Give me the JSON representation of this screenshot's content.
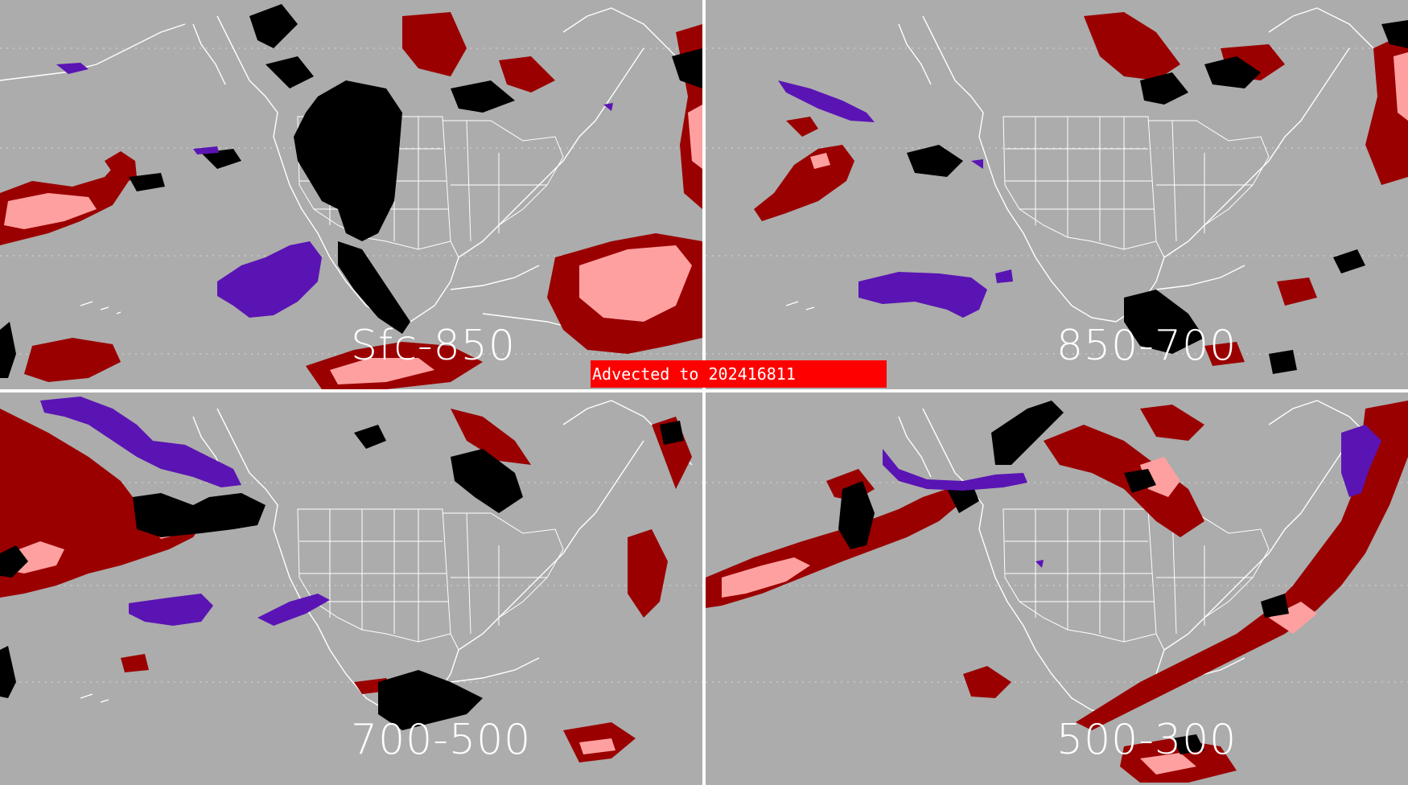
{
  "banner": {
    "text": "Advected to  202416811",
    "color": "#ff0000"
  },
  "panels": [
    {
      "id": "tl",
      "layer_label": "Sfc-850"
    },
    {
      "id": "tr",
      "layer_label": "850-700"
    },
    {
      "id": "bl",
      "layer_label": "700-500"
    },
    {
      "id": "br",
      "layer_label": "500-300"
    }
  ],
  "colors": {
    "background": "#acacac",
    "dark_red": "#9b0000",
    "light_pink": "#ffa0a0",
    "black": "#000000",
    "purple": "#5a14b4",
    "map_lines": "#ffffff"
  }
}
